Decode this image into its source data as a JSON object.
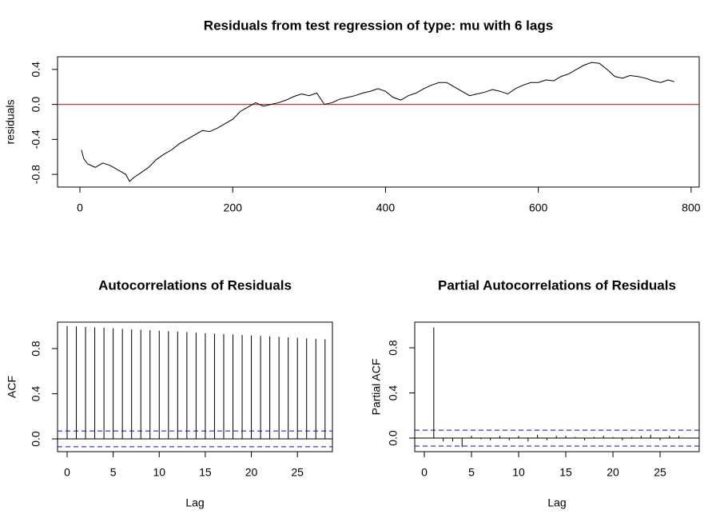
{
  "chart_data": [
    {
      "type": "line",
      "title": "Residuals from test regression of type: mu  with 6 lags",
      "ylabel": "residuals",
      "color": "#000000",
      "x": [
        2,
        5,
        10,
        20,
        30,
        40,
        50,
        60,
        65,
        70,
        80,
        90,
        100,
        110,
        120,
        130,
        140,
        150,
        160,
        170,
        180,
        190,
        200,
        210,
        220,
        230,
        240,
        250,
        260,
        270,
        280,
        290,
        300,
        310,
        320,
        330,
        340,
        350,
        360,
        370,
        380,
        390,
        400,
        410,
        420,
        430,
        440,
        450,
        460,
        470,
        480,
        490,
        500,
        510,
        520,
        530,
        540,
        550,
        560,
        570,
        580,
        590,
        600,
        610,
        620,
        630,
        640,
        650,
        660,
        670,
        680,
        690,
        700,
        710,
        720,
        730,
        740,
        750,
        760,
        770,
        778
      ],
      "values": [
        -0.52,
        -0.62,
        -0.68,
        -0.72,
        -0.67,
        -0.7,
        -0.75,
        -0.8,
        -0.88,
        -0.84,
        -0.78,
        -0.72,
        -0.63,
        -0.57,
        -0.52,
        -0.45,
        -0.4,
        -0.35,
        -0.3,
        -0.31,
        -0.27,
        -0.22,
        -0.17,
        -0.08,
        -0.03,
        0.02,
        -0.02,
        0.0,
        0.02,
        0.05,
        0.09,
        0.12,
        0.1,
        0.13,
        0.0,
        0.02,
        0.06,
        0.08,
        0.1,
        0.13,
        0.15,
        0.18,
        0.15,
        0.08,
        0.05,
        0.1,
        0.13,
        0.18,
        0.22,
        0.25,
        0.25,
        0.2,
        0.15,
        0.1,
        0.12,
        0.14,
        0.17,
        0.15,
        0.12,
        0.18,
        0.22,
        0.25,
        0.25,
        0.28,
        0.27,
        0.32,
        0.35,
        0.4,
        0.45,
        0.48,
        0.47,
        0.4,
        0.32,
        0.3,
        0.33,
        0.32,
        0.3,
        0.27,
        0.25,
        0.28,
        0.26
      ],
      "xlim": [
        -29.3,
        810.6
      ],
      "ylim": [
        -0.945,
        0.545
      ],
      "xticks": [
        0,
        200,
        400,
        600,
        800
      ],
      "yticks": [
        -0.8,
        -0.4,
        {
          "value": 0,
          "label": "0.0"
        },
        0.4
      ],
      "hline": 0,
      "hline_color": "#ff0000"
    },
    {
      "type": "acf",
      "title": "Autocorrelations of Residuals",
      "xlabel": "Lag",
      "ylabel": "ACF",
      "color": "#000000",
      "x": [
        0,
        1,
        2,
        3,
        4,
        5,
        6,
        7,
        8,
        9,
        10,
        11,
        12,
        13,
        14,
        15,
        16,
        17,
        18,
        19,
        20,
        21,
        22,
        23,
        24,
        25,
        26,
        27,
        28
      ],
      "values": [
        1.0,
        0.996,
        0.992,
        0.988,
        0.984,
        0.98,
        0.975,
        0.971,
        0.967,
        0.963,
        0.958,
        0.954,
        0.95,
        0.946,
        0.942,
        0.937,
        0.933,
        0.929,
        0.925,
        0.92,
        0.916,
        0.912,
        0.908,
        0.904,
        0.899,
        0.895,
        0.891,
        0.887,
        0.882
      ],
      "xlim": [
        -1.04,
        28.8
      ],
      "ylim": [
        -0.113,
        1.034
      ],
      "xticks": [
        0,
        5,
        10,
        15,
        20,
        25
      ],
      "yticks": [
        {
          "value": 0,
          "label": "0.0"
        },
        0.4,
        0.8
      ],
      "hline": 0,
      "hline_color": "#000000",
      "conf_bands": [
        0.07,
        -0.07
      ],
      "conf_color": "#0000ff"
    },
    {
      "type": "acf",
      "title": "Partial Autocorrelations of Residuals",
      "xlabel": "Lag",
      "ylabel": "Partial ACF",
      "color": "#000000",
      "x": [
        1,
        2,
        3,
        4,
        5,
        6,
        7,
        8,
        9,
        10,
        11,
        12,
        13,
        14,
        15,
        16,
        17,
        18,
        19,
        20,
        21,
        22,
        23,
        24,
        25,
        26,
        27
      ],
      "values": [
        0.98,
        -0.03,
        -0.03,
        -0.08,
        0.02,
        -0.01,
        -0.02,
        0.02,
        -0.02,
        0.02,
        -0.03,
        0.03,
        -0.02,
        0.02,
        0.02,
        0.01,
        -0.02,
        0.01,
        0.02,
        0.01,
        -0.02,
        0.01,
        0.02,
        0.03,
        -0.02,
        0.02,
        0.02
      ],
      "xlim": [
        -1.02,
        29.15
      ],
      "ylim": [
        -0.12,
        1.027
      ],
      "xticks": [
        0,
        5,
        10,
        15,
        20,
        25
      ],
      "yticks": [
        {
          "value": 0,
          "label": "0.0"
        },
        0.4,
        0.8
      ],
      "hline": 0,
      "hline_color": "#000000",
      "conf_bands": [
        0.07,
        -0.07
      ],
      "conf_color": "#0000ff"
    }
  ]
}
